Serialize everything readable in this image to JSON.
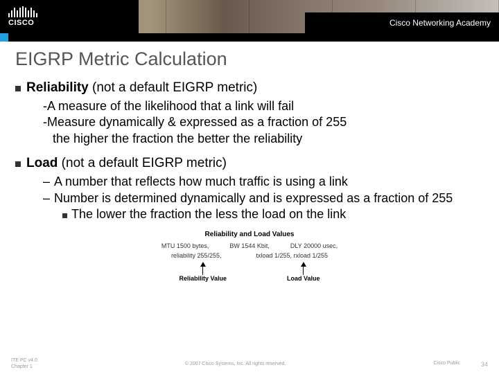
{
  "header": {
    "logo_text": "CISCO",
    "academy_text": "Cisco Networking Academy",
    "cisco_bar_heights": [
      6,
      10,
      14,
      10,
      14,
      16,
      14,
      10,
      14,
      10,
      6
    ],
    "accent_color": "#22a0dd"
  },
  "title": "EIGRP Metric Calculation",
  "sections": [
    {
      "head_bold": "Reliability",
      "head_rest": " (not a default EIGRP metric)",
      "subs": [
        "-A measure of the likelihood that a link will fail",
        "-Measure dynamically & expressed as a fraction of 255",
        "  the higher the fraction the better the reliability"
      ]
    },
    {
      "head_bold": "Load",
      "head_rest": " (not a default EIGRP metric)",
      "dashes": [
        "A number that reflects how much traffic is using a link",
        "Number is determined dynamically and is expressed as a fraction of 255"
      ],
      "inner": "The lower the fraction the less the load on the link"
    }
  ],
  "diagram": {
    "title": "Reliability and Load Values",
    "line1_left": "MTU 1500 bytes,",
    "line1_mid": "BW 1544 Kbit,",
    "line1_right": "DLY 20000 usec,",
    "line2_left": "reliability 255/255,",
    "line2_right": "txload 1/255, rxload 1/255",
    "label_left": "Reliability Value",
    "label_right": "Load Value"
  },
  "footer": {
    "left_line1": "ITE PC v4.0",
    "left_line2": "Chapter 1",
    "center": "© 2007 Cisco Systems, Inc. All rights reserved.",
    "right": "Cisco Public",
    "page": "34"
  }
}
